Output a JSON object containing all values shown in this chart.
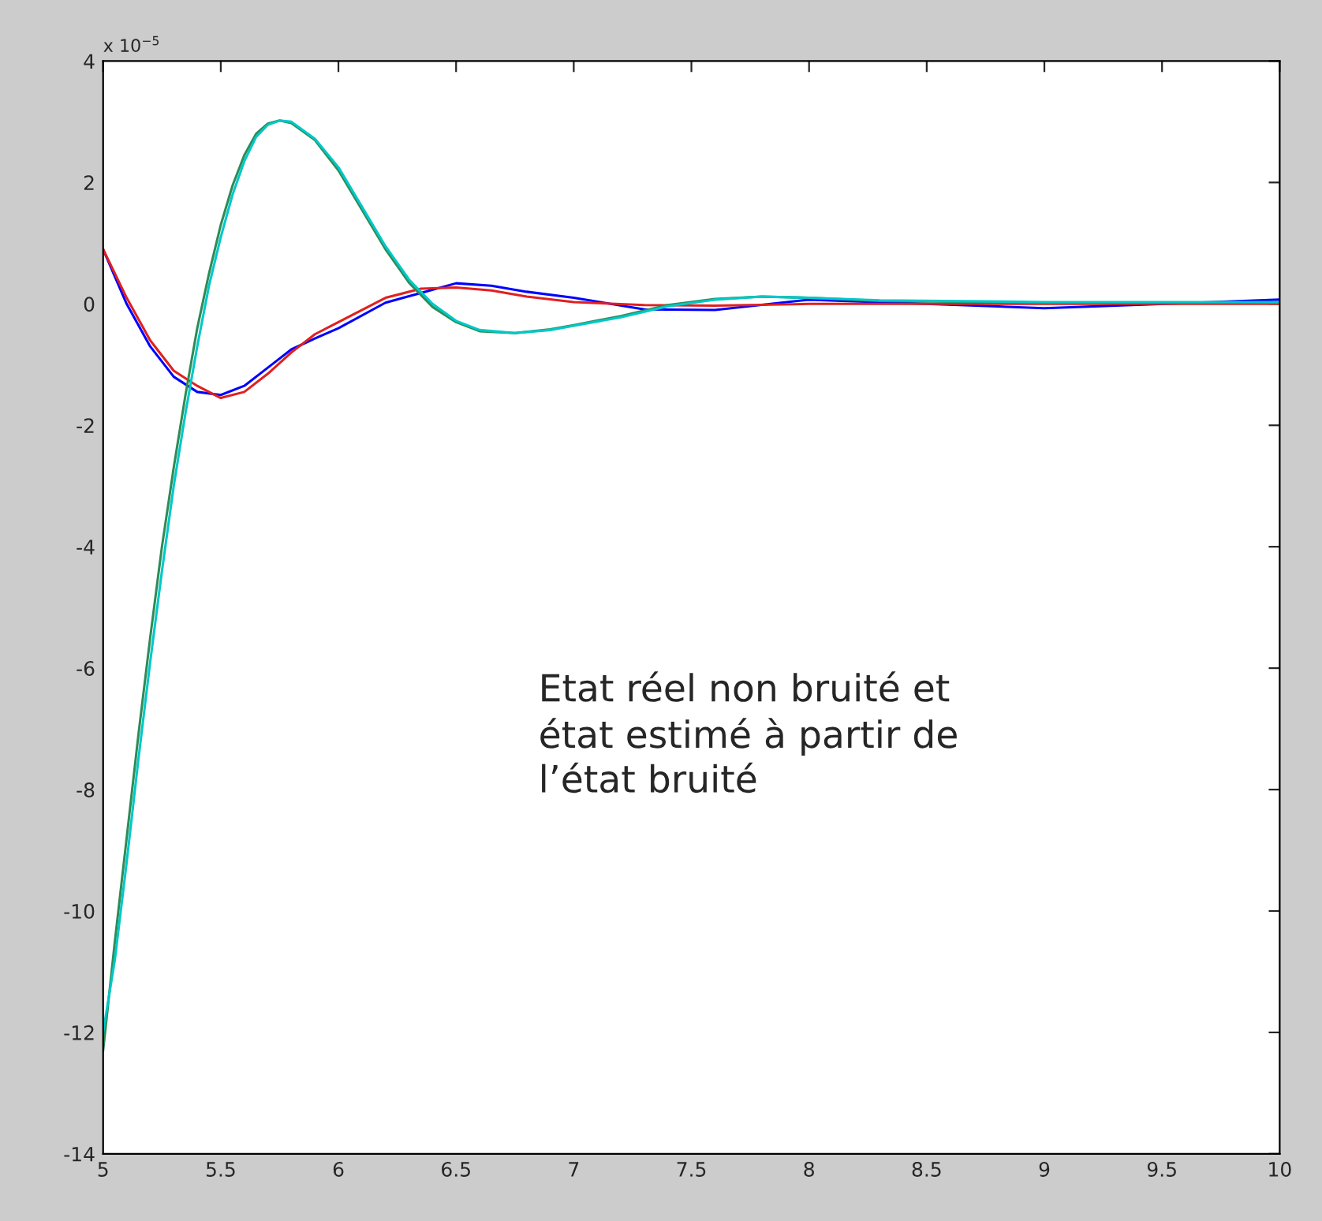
{
  "chart_data": {
    "type": "line",
    "xlim": [
      5,
      10
    ],
    "ylim": [
      -14,
      4
    ],
    "xticks": [
      5,
      5.5,
      6,
      6.5,
      7,
      7.5,
      8,
      8.5,
      9,
      9.5,
      10
    ],
    "yticks": [
      -14,
      -12,
      -10,
      -8,
      -6,
      -4,
      -2,
      0,
      2,
      4
    ],
    "grid": false,
    "line_style": "solid",
    "marker": "none",
    "annotations": [
      "x 10$^{−5}$",
      "Etat réel non bruité et\nétat estimé à partir de\nl’état bruité"
    ],
    "series": [
      {
        "color": "#0000ff",
        "x": [
          5.0,
          5.1,
          5.2,
          5.3,
          5.4,
          5.5,
          5.6,
          5.7,
          5.8,
          5.9,
          6.0,
          6.2,
          6.35,
          6.5,
          6.65,
          6.8,
          7.0,
          7.3,
          7.6,
          8.0,
          9.0,
          10.0
        ],
        "values": [
          0.9,
          0.0,
          -0.7,
          -1.2,
          -1.45,
          -1.5,
          -1.35,
          -1.05,
          -0.75,
          -0.57,
          -0.4,
          0.02,
          0.18,
          0.34,
          0.3,
          0.2,
          0.1,
          -0.09,
          -0.1,
          0.07,
          -0.07,
          0.07
        ]
      },
      {
        "color": "#e02020",
        "x": [
          5.0,
          5.1,
          5.2,
          5.3,
          5.4,
          5.5,
          5.6,
          5.7,
          5.8,
          5.9,
          6.0,
          6.2,
          6.35,
          6.5,
          6.65,
          6.8,
          7.0,
          7.3,
          7.6,
          8.0,
          9.0,
          10.0
        ],
        "values": [
          0.9,
          0.1,
          -0.6,
          -1.1,
          -1.35,
          -1.55,
          -1.45,
          -1.15,
          -0.8,
          -0.5,
          -0.3,
          0.1,
          0.25,
          0.27,
          0.22,
          0.12,
          0.03,
          -0.02,
          -0.03,
          0.0,
          0.0,
          0.0
        ]
      },
      {
        "color": "#2e8b57",
        "x": [
          5.0,
          5.05,
          5.1,
          5.15,
          5.2,
          5.25,
          5.3,
          5.35,
          5.4,
          5.45,
          5.5,
          5.55,
          5.6,
          5.65,
          5.7,
          5.75,
          5.8,
          5.9,
          6.0,
          6.1,
          6.2,
          6.3,
          6.4,
          6.5,
          6.6,
          6.75,
          6.9,
          7.0,
          7.2,
          7.4,
          7.6,
          7.8,
          8.0,
          8.3,
          9.0,
          10.0
        ],
        "values": [
          -12.3,
          -10.5,
          -8.8,
          -7.1,
          -5.5,
          -4.0,
          -2.7,
          -1.5,
          -0.4,
          0.5,
          1.3,
          1.95,
          2.45,
          2.8,
          2.97,
          3.02,
          2.98,
          2.7,
          2.2,
          1.55,
          0.9,
          0.35,
          -0.05,
          -0.3,
          -0.45,
          -0.48,
          -0.42,
          -0.35,
          -0.2,
          -0.02,
          0.08,
          0.12,
          0.1,
          0.05,
          0.02,
          0.02
        ]
      },
      {
        "color": "#00c8c8",
        "x": [
          5.0,
          5.05,
          5.1,
          5.15,
          5.2,
          5.25,
          5.3,
          5.35,
          5.4,
          5.45,
          5.5,
          5.55,
          5.6,
          5.65,
          5.7,
          5.75,
          5.8,
          5.9,
          6.0,
          6.1,
          6.2,
          6.3,
          6.4,
          6.5,
          6.6,
          6.75,
          6.9,
          7.0,
          7.2,
          7.4,
          7.6,
          7.8,
          8.0,
          8.3,
          9.0,
          10.0
        ],
        "values": [
          -12.0,
          -10.8,
          -9.2,
          -7.5,
          -5.9,
          -4.4,
          -3.0,
          -1.8,
          -0.7,
          0.3,
          1.1,
          1.8,
          2.35,
          2.75,
          2.95,
          3.02,
          3.0,
          2.72,
          2.25,
          1.6,
          0.95,
          0.4,
          0.0,
          -0.28,
          -0.43,
          -0.48,
          -0.43,
          -0.36,
          -0.22,
          -0.04,
          0.07,
          0.12,
          0.1,
          0.06,
          0.03,
          0.03
        ]
      }
    ]
  }
}
